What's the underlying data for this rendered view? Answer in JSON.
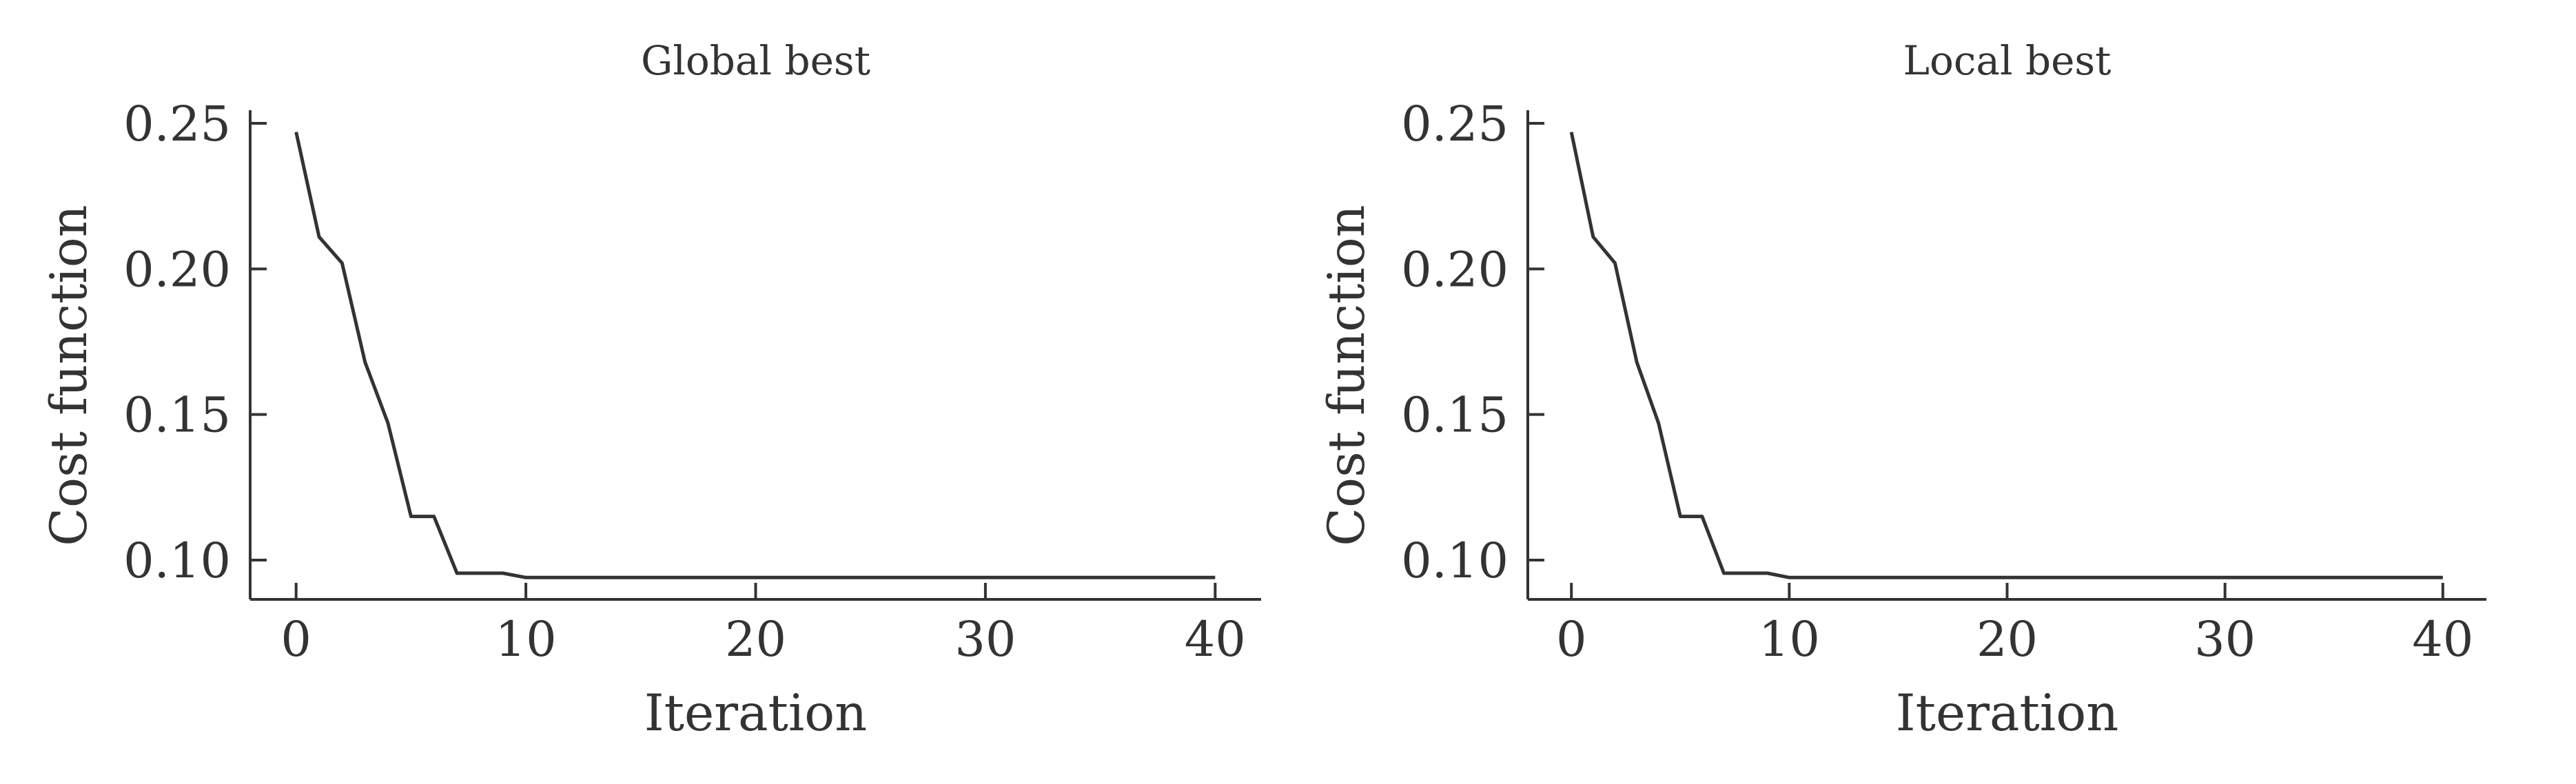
{
  "chart_data": [
    {
      "type": "line",
      "title": "Global best",
      "xlabel": "Iteration",
      "ylabel": "Cost function",
      "xlim": [
        -2,
        42
      ],
      "ylim": [
        0.0865,
        0.2545
      ],
      "xticks": [
        "0",
        "10",
        "20",
        "30",
        "40"
      ],
      "yticks": [
        "0.10",
        "0.15",
        "0.20",
        "0.25"
      ],
      "grid": false,
      "series": [
        {
          "color": "#333333",
          "x": [
            0,
            1,
            2,
            3,
            4,
            5,
            6,
            7,
            8,
            9,
            10,
            11,
            12,
            13,
            14,
            15,
            16,
            17,
            18,
            19,
            20,
            21,
            22,
            23,
            24,
            25,
            26,
            27,
            28,
            29,
            30,
            31,
            32,
            33,
            34,
            35,
            36,
            37,
            38,
            39,
            40
          ],
          "y": [
            0.247,
            0.211,
            0.202,
            0.168,
            0.147,
            0.115,
            0.115,
            0.0955,
            0.0955,
            0.0955,
            0.094,
            0.094,
            0.094,
            0.094,
            0.094,
            0.094,
            0.094,
            0.094,
            0.094,
            0.094,
            0.094,
            0.094,
            0.094,
            0.094,
            0.094,
            0.094,
            0.094,
            0.094,
            0.094,
            0.094,
            0.094,
            0.094,
            0.094,
            0.094,
            0.094,
            0.094,
            0.094,
            0.094,
            0.094,
            0.094,
            0.094
          ]
        }
      ]
    },
    {
      "type": "line",
      "title": "Local best",
      "xlabel": "Iteration",
      "ylabel": "Cost function",
      "xlim": [
        -2,
        42
      ],
      "ylim": [
        0.0865,
        0.2545
      ],
      "xticks": [
        "0",
        "10",
        "20",
        "30",
        "40"
      ],
      "yticks": [
        "0.10",
        "0.15",
        "0.20",
        "0.25"
      ],
      "grid": false,
      "series": [
        {
          "color": "#333333",
          "x": [
            0,
            1,
            2,
            3,
            4,
            5,
            6,
            7,
            8,
            9,
            10,
            11,
            12,
            13,
            14,
            15,
            16,
            17,
            18,
            19,
            20,
            21,
            22,
            23,
            24,
            25,
            26,
            27,
            28,
            29,
            30,
            31,
            32,
            33,
            34,
            35,
            36,
            37,
            38,
            39,
            40
          ],
          "y": [
            0.247,
            0.211,
            0.202,
            0.168,
            0.147,
            0.115,
            0.115,
            0.0955,
            0.0955,
            0.0955,
            0.094,
            0.094,
            0.094,
            0.094,
            0.094,
            0.094,
            0.094,
            0.094,
            0.094,
            0.094,
            0.094,
            0.094,
            0.094,
            0.094,
            0.094,
            0.094,
            0.094,
            0.094,
            0.094,
            0.094,
            0.094,
            0.094,
            0.094,
            0.094,
            0.094,
            0.094,
            0.094,
            0.094,
            0.094,
            0.094,
            0.094
          ]
        }
      ]
    }
  ]
}
